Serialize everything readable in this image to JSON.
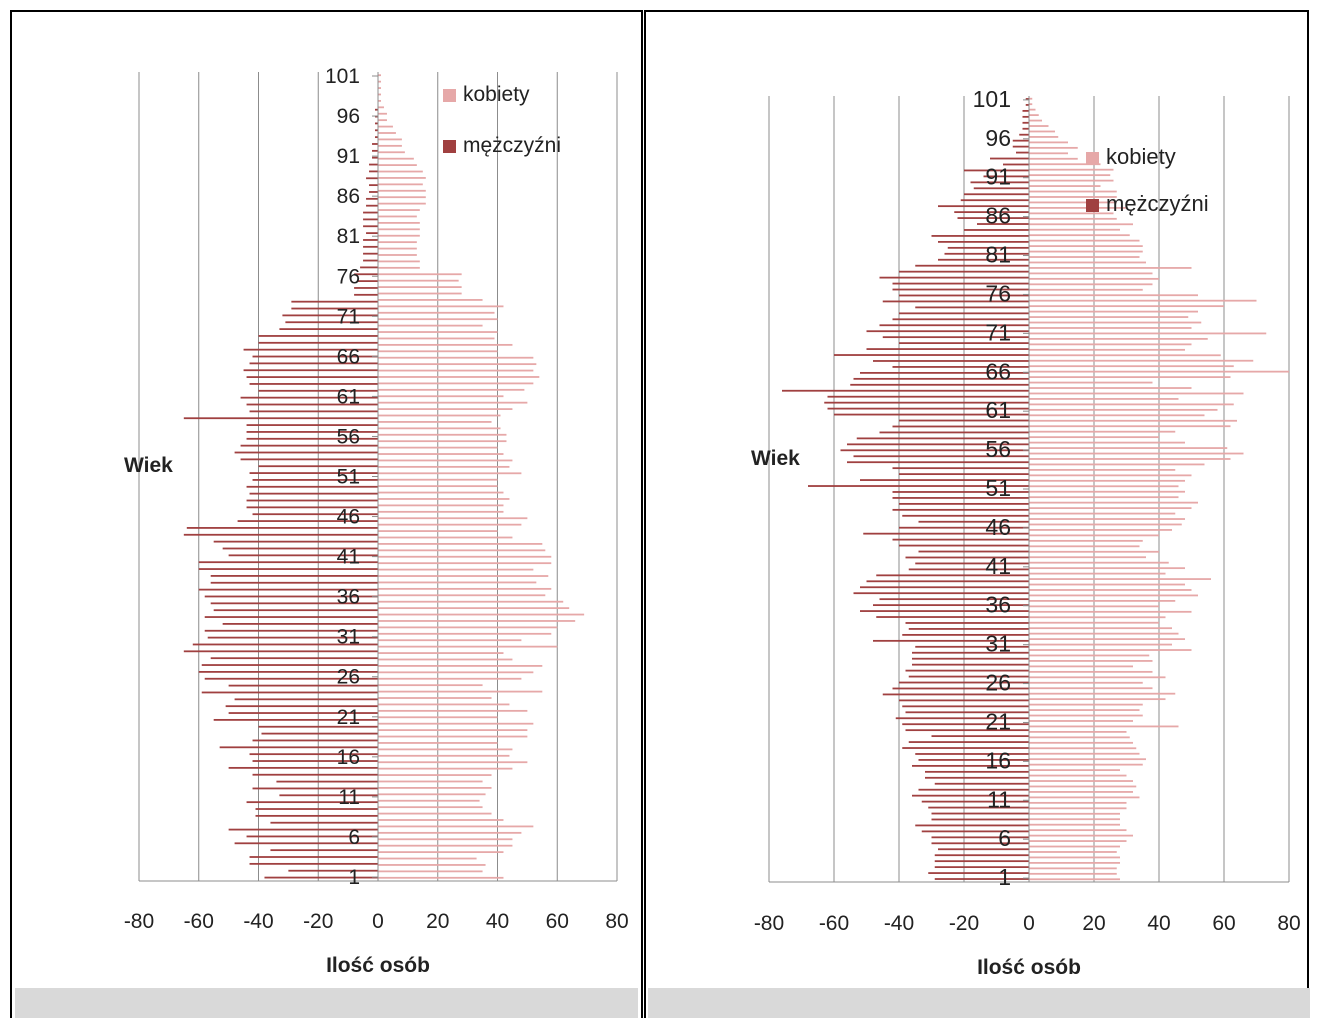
{
  "chart_data": [
    {
      "type": "bar",
      "orientation": "horizontal",
      "layout": "population-pyramid",
      "xlabel": "Ilość osób",
      "ylabel": "Wiek",
      "xlim": [
        -80,
        80
      ],
      "xticks": [
        -80,
        -60,
        -40,
        -20,
        0,
        20,
        40,
        60,
        80
      ],
      "xtick_labels": [
        "-80",
        "-60",
        "-40",
        "-20",
        "0",
        "20",
        "40",
        "60",
        "80"
      ],
      "ytick_labels": [
        "1",
        "6",
        "11",
        "16",
        "21",
        "26",
        "31",
        "36",
        "41",
        "46",
        "51",
        "56",
        "61",
        "66",
        "71",
        "76",
        "81",
        "86",
        "91",
        "96",
        "101"
      ],
      "grid": true,
      "legend_position": "top-right",
      "categories_from": 1,
      "categories_to": 101,
      "series": [
        {
          "name": "kobiety",
          "color": "#e6a8a8",
          "values": [
            42,
            35,
            36,
            33,
            42,
            45,
            45,
            48,
            52,
            42,
            38,
            35,
            34,
            36,
            38,
            35,
            38,
            45,
            50,
            44,
            45,
            40,
            50,
            50,
            52,
            40,
            50,
            44,
            38,
            55,
            35,
            48,
            52,
            55,
            45,
            42,
            60,
            48,
            58,
            60,
            66,
            69,
            64,
            62,
            56,
            58,
            53,
            57,
            52,
            58,
            58,
            56,
            55,
            45,
            40,
            48,
            50,
            42,
            42,
            44,
            42,
            40,
            40,
            48,
            44,
            45,
            42,
            40,
            43,
            43,
            41,
            38,
            41,
            45,
            50,
            42,
            49,
            52,
            54,
            52,
            53,
            52,
            40,
            45,
            39,
            40,
            35,
            40,
            39,
            42,
            35,
            28,
            28,
            27,
            28,
            14,
            14,
            13,
            13,
            13,
            14,
            14,
            14,
            13,
            14,
            16,
            16,
            16,
            15,
            16,
            15,
            13,
            12,
            9,
            8,
            8,
            6,
            5,
            3,
            3,
            2,
            1,
            1,
            1,
            1,
            1
          ]
        },
        {
          "name": "mężczyźni",
          "color": "#a04040",
          "values": [
            -38,
            -30,
            -43,
            -43,
            -36,
            -48,
            -44,
            -50,
            -36,
            -41,
            -41,
            -44,
            -33,
            -42,
            -34,
            -42,
            -50,
            -42,
            -43,
            -53,
            -42,
            -39,
            -40,
            -55,
            -50,
            -51,
            -48,
            -59,
            -50,
            -58,
            -60,
            -59,
            -56,
            -65,
            -62,
            -57,
            -58,
            -52,
            -58,
            -55,
            -56,
            -58,
            -60,
            -56,
            -56,
            -60,
            -60,
            -50,
            -52,
            -55,
            -65,
            -64,
            -47,
            -42,
            -44,
            -44,
            -43,
            -44,
            -42,
            -43,
            -40,
            -46,
            -48,
            -46,
            -44,
            -44,
            -44,
            -65,
            -43,
            -44,
            -46,
            -40,
            -43,
            -44,
            -45,
            -43,
            -42,
            -45,
            -40,
            -40,
            -33,
            -31,
            -32,
            -29,
            -29,
            -8,
            -8,
            -7,
            -8,
            -6,
            -5,
            -5,
            -5,
            -5,
            -4,
            -5,
            -5,
            -5,
            -4,
            -4,
            -3,
            -3,
            -4,
            -3,
            -3,
            -2,
            -2,
            -2,
            -1,
            -1,
            -1,
            -1,
            -1,
            0,
            0,
            0,
            0,
            0
          ]
        }
      ]
    },
    {
      "type": "bar",
      "orientation": "horizontal",
      "layout": "population-pyramid",
      "xlabel": "Ilość osób",
      "ylabel": "Wiek",
      "xlim": [
        -80,
        80
      ],
      "xticks": [
        -80,
        -60,
        -40,
        -20,
        0,
        20,
        40,
        60,
        80
      ],
      "xtick_labels": [
        "-80",
        "-60",
        "-40",
        "-20",
        "0",
        "20",
        "40",
        "60",
        "80"
      ],
      "ytick_labels": [
        "1",
        "6",
        "11",
        "16",
        "21",
        "26",
        "31",
        "36",
        "41",
        "46",
        "51",
        "56",
        "61",
        "66",
        "71",
        "76",
        "81",
        "86",
        "91",
        "96",
        "101"
      ],
      "grid": true,
      "legend_position": "top-right",
      "categories_from": 1,
      "categories_to": 101,
      "series": [
        {
          "name": "kobiety",
          "color": "#e6a8a8",
          "values": [
            28,
            27,
            27,
            28,
            28,
            27,
            28,
            30,
            32,
            30,
            28,
            28,
            28,
            30,
            30,
            34,
            32,
            33,
            32,
            30,
            28,
            35,
            36,
            34,
            33,
            32,
            31,
            30,
            46,
            32,
            35,
            34,
            35,
            42,
            45,
            38,
            35,
            42,
            38,
            32,
            38,
            37,
            50,
            44,
            48,
            46,
            44,
            40,
            42,
            50,
            40,
            45,
            52,
            50,
            48,
            56,
            42,
            48,
            43,
            36,
            40,
            34,
            35,
            40,
            44,
            47,
            48,
            45,
            50,
            52,
            46,
            48,
            46,
            48,
            50,
            45,
            54,
            62,
            66,
            61,
            48,
            40,
            45,
            62,
            64,
            54,
            58,
            63,
            46,
            66,
            50,
            38,
            62,
            80,
            63,
            69,
            59,
            48,
            50,
            55,
            73,
            50,
            53,
            49,
            52,
            60,
            70,
            52,
            35,
            38,
            40,
            38,
            50,
            36,
            34,
            35,
            35,
            34,
            31,
            28,
            32,
            27,
            26,
            30,
            27,
            27,
            27,
            22,
            26,
            25,
            26,
            22,
            15,
            12,
            15,
            12,
            9,
            8,
            6,
            4,
            3,
            2,
            1,
            1
          ]
        },
        {
          "name": "mężczyźni",
          "color": "#a04040",
          "values": [
            -29,
            -31,
            -29,
            -29,
            -29,
            -28,
            -30,
            -30,
            -33,
            -35,
            -30,
            -30,
            -31,
            -33,
            -36,
            -34,
            -29,
            -32,
            -32,
            -36,
            -34,
            -35,
            -39,
            -37,
            -30,
            -38,
            -39,
            -41,
            -38,
            -39,
            -40,
            -45,
            -42,
            -40,
            -37,
            -38,
            -36,
            -36,
            -36,
            -35,
            -48,
            -39,
            -37,
            -38,
            -47,
            -52,
            -48,
            -46,
            -54,
            -52,
            -50,
            -47,
            -37,
            -35,
            -38,
            -34,
            -40,
            -42,
            -51,
            -40,
            -34,
            -39,
            -42,
            -40,
            -42,
            -42,
            -68,
            -52,
            -40,
            -42,
            -56,
            -54,
            -58,
            -56,
            -53,
            -46,
            -42,
            -40,
            -60,
            -62,
            -63,
            -62,
            -76,
            -55,
            -54,
            -52,
            -42,
            -48,
            -60,
            -50,
            -40,
            -45,
            -50,
            -46,
            -42,
            -40,
            -35,
            -45,
            -40,
            -42,
            -42,
            -46,
            -40,
            -35,
            -28,
            -26,
            -25,
            -28,
            -30,
            -20,
            -16,
            -22,
            -23,
            -28,
            -21,
            -20,
            -17,
            -18,
            -14,
            -20,
            -8,
            -12,
            -4,
            -5,
            -5,
            -3,
            -2,
            -2,
            -2,
            -2,
            -1,
            -1
          ]
        }
      ]
    }
  ]
}
